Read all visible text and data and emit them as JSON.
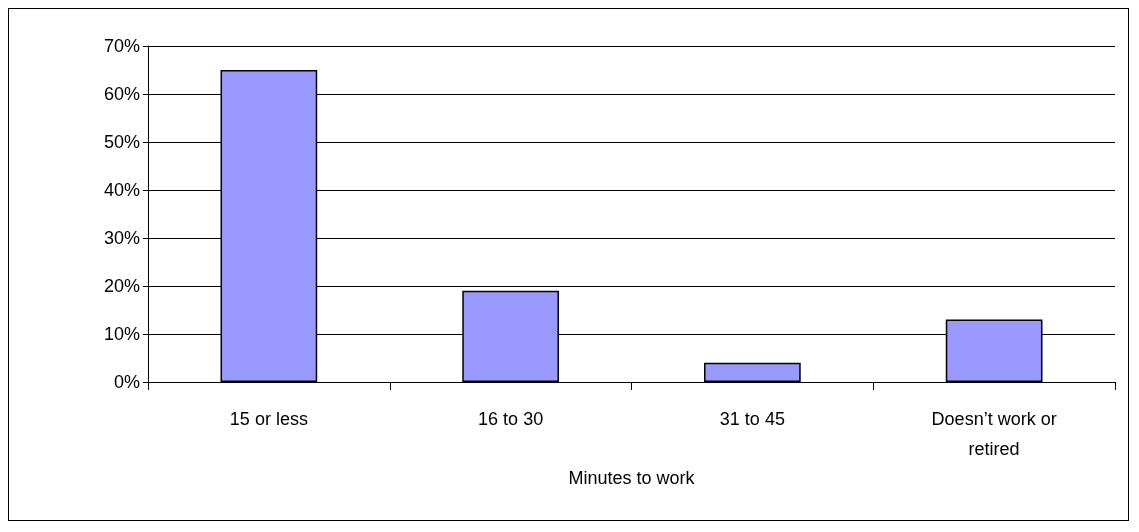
{
  "chart_data": {
    "type": "bar",
    "xlabel": "Minutes to work",
    "categories": [
      "15 or less",
      "16 to 30",
      "31 to 45",
      "Doesn’t work or retired"
    ],
    "values": [
      65,
      19,
      4,
      13
    ],
    "color": "#9999ff",
    "ylim": [
      0,
      70
    ],
    "yticks": [
      {
        "value": 0,
        "label": "0%"
      },
      {
        "value": 10,
        "label": "10%"
      },
      {
        "value": 20,
        "label": "20%"
      },
      {
        "value": 30,
        "label": "30%"
      },
      {
        "value": 40,
        "label": "40%"
      },
      {
        "value": 50,
        "label": "50%"
      },
      {
        "value": 60,
        "label": "60%"
      },
      {
        "value": 70,
        "label": "70%"
      }
    ],
    "grid": "y"
  }
}
